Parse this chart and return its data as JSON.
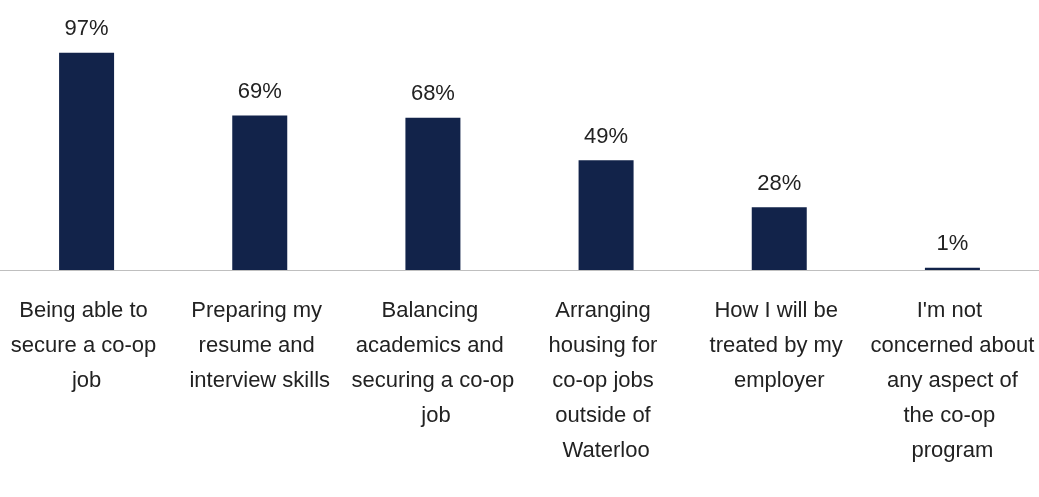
{
  "chart_data": {
    "type": "bar",
    "categories": [
      "Being able to secure a co-op job",
      "Preparing my resume and interview skills",
      "Balancing academics and securing a co-op job",
      "Arranging housing for co-op jobs outside of Waterloo",
      "How I will be treated by my employer",
      "I'm not concerned about any aspect of the co-op program"
    ],
    "values": [
      97,
      69,
      68,
      49,
      28,
      1
    ],
    "value_labels": [
      "97%",
      "69%",
      "68%",
      "49%",
      "28%",
      "1%"
    ],
    "color": "#12234a"
  }
}
